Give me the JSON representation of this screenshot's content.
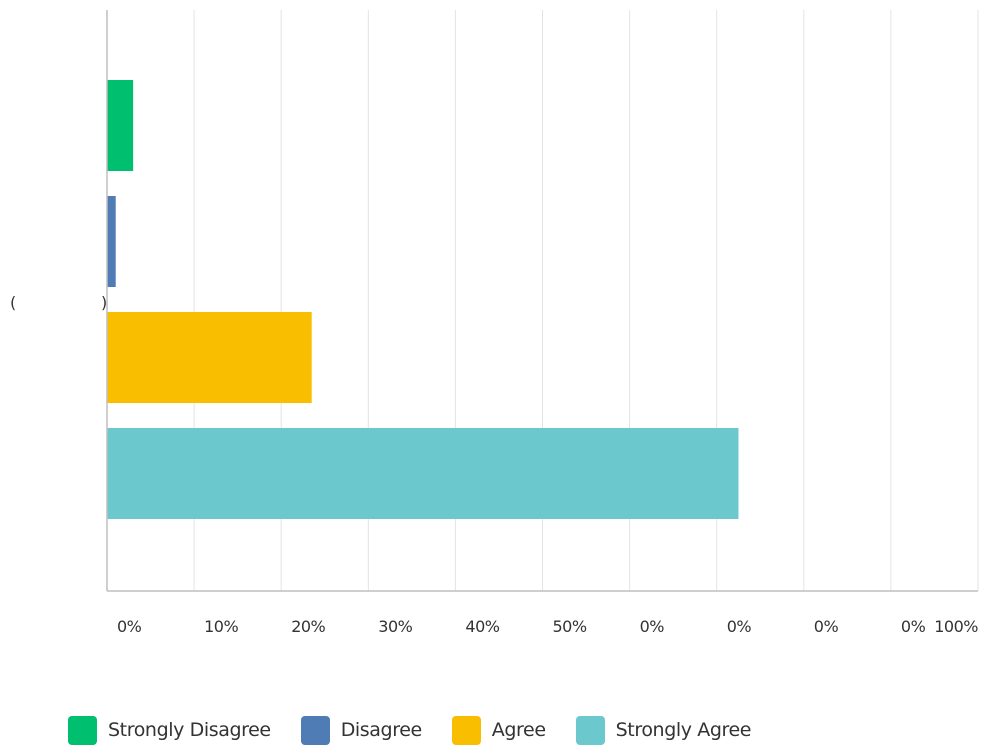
{
  "chart_data": {
    "type": "bar",
    "orientation": "horizontal",
    "title": "",
    "xlabel": "",
    "ylabel": "",
    "categories": [
      "( )"
    ],
    "series": [
      {
        "name": "Strongly Disagree",
        "values": [
          3
        ],
        "color": "#00bf6f"
      },
      {
        "name": "Disagree",
        "values": [
          1
        ],
        "color": "#507cb6"
      },
      {
        "name": "Agree",
        "values": [
          23.5
        ],
        "color": "#f9be00"
      },
      {
        "name": "Strongly Agree",
        "values": [
          72.5
        ],
        "color": "#6bc8cd"
      }
    ],
    "xlim": [
      0,
      100
    ],
    "x_tick_labels": [
      "0%",
      "10%",
      "20%",
      "30%",
      "40%",
      "50%",
      "0%",
      "0%",
      "0%",
      "0%",
      "100%"
    ],
    "grid": true,
    "legend_position": "bottom-left"
  },
  "category_labels": {
    "open": "(",
    "close": ")"
  }
}
